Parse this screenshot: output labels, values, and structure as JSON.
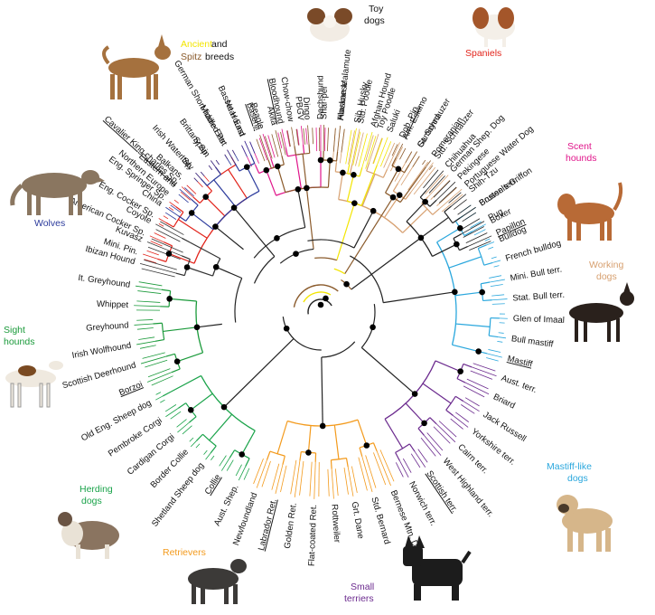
{
  "colors": {
    "wolves": "#2b3a9c",
    "sight": "#1a9a3a",
    "herding": "#1aa34a",
    "retrievers": "#f39a1c",
    "mastiff": "#2aa7dd",
    "terriers": "#6b2a8e",
    "working": "#d7a070",
    "scent": "#e0148a",
    "spaniels": "#e2231a",
    "toy": "#222222",
    "ancient": "#f3e500",
    "spitz": "#8a5a2b",
    "neutral": "#333333"
  },
  "legend": {
    "ancient": "Ancient",
    "and": " and",
    "spitz": "Spitz",
    "breeds": " breeds"
  },
  "group_labels": [
    {
      "key": "toy",
      "lines": [
        "Toy",
        "dogs"
      ]
    },
    {
      "key": "spaniels",
      "lines": [
        "Spaniels"
      ]
    },
    {
      "key": "scent",
      "lines": [
        "Scent",
        "hounds"
      ]
    },
    {
      "key": "working",
      "lines": [
        "Working",
        "dogs"
      ]
    },
    {
      "key": "mastiff",
      "lines": [
        "Mastiff-like",
        "dogs"
      ]
    },
    {
      "key": "terriers",
      "lines": [
        "Small",
        "terriers"
      ]
    },
    {
      "key": "retrievers",
      "lines": [
        "Retrievers"
      ]
    },
    {
      "key": "herding",
      "lines": [
        "Herding",
        "dogs"
      ]
    },
    {
      "key": "sight",
      "lines": [
        "Sight",
        "hounds"
      ]
    },
    {
      "key": "wolves",
      "lines": [
        "Wolves"
      ]
    }
  ],
  "breeds": [
    {
      "name": "Mini. Pin.",
      "angle": -72,
      "group": "spaniels"
    },
    {
      "name": "American Cocker Sp.",
      "angle": -66,
      "group": "spaniels"
    },
    {
      "name": "Eng. Cocker Sp.",
      "angle": -60,
      "group": "spaniels"
    },
    {
      "name": "Eng. Springer Sp.",
      "angle": -54,
      "group": "spaniels"
    },
    {
      "name": "Cavalier King charles Sp.",
      "angle": -48,
      "group": "spaniels",
      "underline": true
    },
    {
      "name": "Irish Water Sp.",
      "angle": -42,
      "group": "spaniels"
    },
    {
      "name": "Brittany Sp.",
      "angle": -36,
      "group": "spaniels"
    },
    {
      "name": "German Short-haired Ptr.",
      "angle": -30,
      "group": "spaniels"
    },
    {
      "name": "Basset Hound",
      "angle": -24,
      "group": "scent"
    },
    {
      "name": "Beagle",
      "angle": -18,
      "group": "scent"
    },
    {
      "name": "Bloodhound",
      "angle": -12,
      "group": "scent",
      "underline": true
    },
    {
      "name": "PBGV",
      "angle": -6,
      "group": "scent"
    },
    {
      "name": "Dachshund",
      "angle": 0,
      "group": "scent"
    },
    {
      "name": "Havanese",
      "angle": 6,
      "group": "working"
    },
    {
      "name": "Std. Poodle",
      "angle": 12,
      "group": "working"
    },
    {
      "name": "Toy Poodle",
      "angle": 18,
      "group": "working"
    },
    {
      "name": "Dob. Pin.",
      "angle": 25,
      "group": "working",
      "underline": true
    },
    {
      "name": "Gt. Schnauzer",
      "angle": 31,
      "group": "working"
    },
    {
      "name": "Std. Schnauzer",
      "angle": 37,
      "group": "working"
    },
    {
      "name": "German Shep. Dog",
      "angle": 43,
      "group": "working"
    },
    {
      "name": "Portuguese Water Dog",
      "angle": 49,
      "group": "working"
    },
    {
      "name": "Bosten terr.",
      "angle": 56,
      "group": "mastiff"
    },
    {
      "name": "Boxer",
      "angle": 62,
      "group": "mastiff"
    },
    {
      "name": "Bulldog",
      "angle": 68,
      "group": "mastiff"
    },
    {
      "name": "French bulldog",
      "angle": 74,
      "group": "mastiff"
    },
    {
      "name": "Mini. Bull terr.",
      "angle": 80,
      "group": "mastiff"
    },
    {
      "name": "Stat. Bull terr.",
      "angle": 86,
      "group": "mastiff"
    },
    {
      "name": "Glen of Imaal",
      "angle": 92,
      "group": "mastiff"
    },
    {
      "name": "Bull mastiff",
      "angle": 98,
      "group": "mastiff"
    },
    {
      "name": "Mastiff",
      "angle": 104,
      "group": "mastiff",
      "underline": true
    },
    {
      "name": "Aust. terr.",
      "angle": 110,
      "group": "terriers"
    },
    {
      "name": "Briard",
      "angle": 116,
      "group": "terriers"
    },
    {
      "name": "Jack Russell",
      "angle": 122,
      "group": "terriers"
    },
    {
      "name": "Yorkshire terr.",
      "angle": 128,
      "group": "terriers"
    },
    {
      "name": "Cairn terr.",
      "angle": 134,
      "group": "terriers"
    },
    {
      "name": "West Highland terr.",
      "angle": 140,
      "group": "terriers"
    },
    {
      "name": "Scottish terr.",
      "angle": 146,
      "group": "terriers",
      "underline": true
    },
    {
      "name": "Norwich terr.",
      "angle": 152,
      "group": "terriers"
    },
    {
      "name": "Bernese Mtn. Dog",
      "angle": 158,
      "group": "retrievers"
    },
    {
      "name": "Std. Bernard",
      "angle": 164,
      "group": "retrievers"
    },
    {
      "name": "Grt. Dane",
      "angle": 170,
      "group": "retrievers"
    },
    {
      "name": "Rottweiler",
      "angle": 176,
      "group": "retrievers"
    },
    {
      "name": "Flat-coated Ret.",
      "angle": 182,
      "group": "retrievers"
    },
    {
      "name": "Golden Ret.",
      "angle": 188,
      "group": "retrievers"
    },
    {
      "name": "Labrador Ret.",
      "angle": 194,
      "group": "retrievers",
      "underline": true
    },
    {
      "name": "Newfoundland",
      "angle": 200,
      "group": "retrievers"
    },
    {
      "name": "Aust. Shep.",
      "angle": 206,
      "group": "herding"
    },
    {
      "name": "Collie",
      "angle": 212,
      "group": "herding",
      "underline": true
    },
    {
      "name": "Shetland Sheep dog",
      "angle": 218,
      "group": "herding"
    },
    {
      "name": "Border Collie",
      "angle": 224,
      "group": "herding"
    },
    {
      "name": "Cardigan Corgi",
      "angle": 230,
      "group": "herding"
    },
    {
      "name": "Pembroke Corgi",
      "angle": 236,
      "group": "herding"
    },
    {
      "name": "Old Eng. Sheep dog",
      "angle": 242,
      "group": "herding"
    },
    {
      "name": "Borzoi",
      "angle": 248,
      "group": "sight",
      "underline": true
    },
    {
      "name": "Scottish Deerhound",
      "angle": 254,
      "group": "sight"
    },
    {
      "name": "Irish Wolfhound",
      "angle": 260,
      "group": "sight"
    },
    {
      "name": "Greyhound",
      "angle": 266,
      "group": "sight"
    },
    {
      "name": "Whippet",
      "angle": 272,
      "group": "sight"
    },
    {
      "name": "It. Greyhound",
      "angle": 278,
      "group": "sight"
    },
    {
      "name": "Ibizan Hound",
      "angle": 285,
      "group": "neutral"
    },
    {
      "name": "Kuvasz",
      "angle": 292,
      "group": "neutral"
    },
    {
      "name": "Coyote",
      "angle": 298,
      "group": "neutral"
    },
    {
      "name": "China",
      "angle": 304,
      "group": "wolves"
    },
    {
      "name": "Balkans,|Eastern and|Northern Europe",
      "angle": 311,
      "group": "wolves"
    },
    {
      "name": "Italy",
      "angle": 318,
      "group": "wolves"
    },
    {
      "name": "Spain",
      "angle": 324,
      "group": "wolves"
    },
    {
      "name": "Middle East",
      "angle": 330,
      "group": "wolves"
    },
    {
      "name": "Near East",
      "angle": 336,
      "group": "wolves"
    },
    {
      "name": "Basenji",
      "angle": 341,
      "group": "spitz",
      "underline": true
    },
    {
      "name": "Akita",
      "angle": 346,
      "group": "spitz"
    },
    {
      "name": "Chow-chow",
      "angle": 351,
      "group": "spitz"
    },
    {
      "name": "Dingo",
      "angle": 356,
      "group": "spitz"
    },
    {
      "name": "Shar-pei",
      "angle": 1,
      "group": "spitz"
    },
    {
      "name": "Alaskan Malamute",
      "angle": 6,
      "group": "spitz"
    },
    {
      "name": "Sib. Husky",
      "angle": 11,
      "group": "ancient"
    },
    {
      "name": "Afghan Hound",
      "angle": 16,
      "group": "ancient"
    },
    {
      "name": "Saluki",
      "angle": 21,
      "group": "ancient"
    },
    {
      "name": "Am. Eskimo",
      "angle": 26,
      "group": "spitz"
    },
    {
      "name": "Samoyed",
      "angle": 31,
      "group": "spitz"
    },
    {
      "name": "Pomeranian",
      "angle": 36,
      "group": "spitz"
    },
    {
      "name": "Chihuahua",
      "angle": 41,
      "group": "toy"
    },
    {
      "name": "Pekingese",
      "angle": 46,
      "group": "toy"
    },
    {
      "name": "Shih-Tzu",
      "angle": 51,
      "group": "toy"
    },
    {
      "name": "Brussels Griffon",
      "angle": 56,
      "group": "toy"
    },
    {
      "name": "Pug",
      "angle": 61,
      "group": "toy"
    },
    {
      "name": "Papillon",
      "angle": 66,
      "group": "toy",
      "underline": true
    }
  ]
}
